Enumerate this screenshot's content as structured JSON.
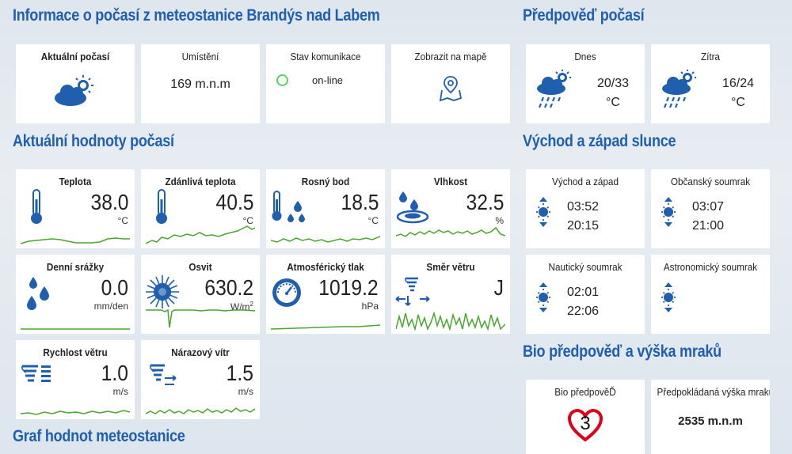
{
  "sections": {
    "station": "Informace o počasí z meteostanice Brandýs nad Labem",
    "forecast": "Předpověď počasí",
    "current_values": "Aktuální hodnoty počasí",
    "sun": "Východ a západ slunce",
    "bio": "Bio předpověď a výška mraků",
    "graph": "Graf hodnot meteostanice"
  },
  "info": {
    "current_weather": "Aktuální počasí",
    "location_label": "Umístění",
    "location_value": "169 m.n.m",
    "comm_label": "Stav komunikace",
    "comm_value": "on-line",
    "map_label": "Zobrazit na mapě"
  },
  "forecast": {
    "today_label": "Dnes",
    "today_temp": "20/33",
    "today_unit": "°C",
    "tomorrow_label": "Zítra",
    "tomorrow_temp": "16/24",
    "tomorrow_unit": "°C"
  },
  "tiles": {
    "temperature": {
      "label": "Teplota",
      "value": "38.0",
      "unit": "°C"
    },
    "feels_like": {
      "label": "Zdánlivá teplota",
      "value": "40.5",
      "unit": "°C"
    },
    "dew_point": {
      "label": "Rosný bod",
      "value": "18.5",
      "unit": "°C"
    },
    "humidity": {
      "label": "Vlhkost",
      "value": "32.5",
      "unit": "%"
    },
    "rain": {
      "label": "Denní srážky",
      "value": "0.0",
      "unit": "mm/den"
    },
    "solar": {
      "label": "Osvit",
      "value": "630.2",
      "unit": "W/m",
      "unit_sup": "2"
    },
    "pressure": {
      "label": "Atmosférický tlak",
      "value": "1019.2",
      "unit": "hPa"
    },
    "wind_dir": {
      "label": "Směr větru",
      "value": "J"
    },
    "wind_speed": {
      "label": "Rychlost větru",
      "value": "1.0",
      "unit": "m/s"
    },
    "gust": {
      "label": "Nárazový vítr",
      "value": "1.5",
      "unit": "m/s"
    }
  },
  "sun": {
    "rise_set_label": "Východ a západ",
    "rise": "03:52",
    "set": "20:15",
    "civil_label": "Občanský soumrak",
    "civil_start": "03:07",
    "civil_end": "21:00",
    "nautical_label": "Nautický soumrak",
    "nautical_start": "02:01",
    "nautical_end": "22:06",
    "astro_label": "Astronomický soumrak"
  },
  "bio": {
    "bio_label": "Bio předpověĎ",
    "bio_value": "3",
    "cloud_label": "Předpokládaná výška mraků",
    "cloud_value": "2535 m.n.m"
  },
  "colors": {
    "accent": "#1f5fae",
    "spark": "#4aa52e",
    "online": "#5ad35a",
    "heart": "#e0001a"
  },
  "icons": [
    "cloud-sun-icon",
    "map-pin-icon",
    "rain-cloud-icon",
    "thermometer-icon",
    "droplets-icon",
    "sun-icon",
    "gauge-icon",
    "tornado-icon",
    "wind-icon",
    "sunrise-icon",
    "heart-icon"
  ]
}
